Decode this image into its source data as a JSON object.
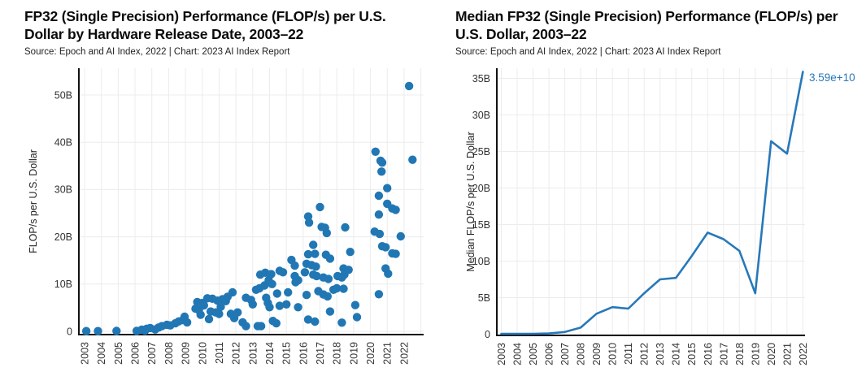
{
  "page": {
    "background": "#ffffff",
    "grid_color": "#ececec",
    "axis_color": "#111111",
    "tick_color": "#333333"
  },
  "chart_data": [
    {
      "type": "scatter",
      "title": "FP32 (Single Precision) Performance (FLOP/s) per U.S. Dollar by Hardware Release Date, 2003–22",
      "source": "Source: Epoch and AI Index, 2022 | Chart: 2023 AI Index Report",
      "ylabel": "FLOP/s per U.S. Dollar",
      "units": "billions of FLOP/s per U.S. dollar",
      "marker_color": "#2177b4",
      "xticks": [
        2003,
        2004,
        2005,
        2006,
        2007,
        2008,
        2009,
        2010,
        2011,
        2012,
        2013,
        2014,
        2015,
        2016,
        2017,
        2018,
        2019,
        2020,
        2021,
        2022
      ],
      "xtick_labels": [
        "2003",
        "2004",
        "2005",
        "2006",
        "2007",
        "2008",
        "2009",
        "2010",
        "2011",
        "2012",
        "2013",
        "2014",
        "2015",
        "2016",
        "2017",
        "2018",
        "2019",
        "2020",
        "2021",
        "2022"
      ],
      "ytick_values": [
        0,
        10,
        20,
        30,
        40,
        50
      ],
      "ytick_labels": [
        "0",
        "10B",
        "20B",
        "30B",
        "40B",
        "50B"
      ],
      "ylim": [
        0,
        55
      ],
      "xlim": [
        2002.6,
        2023.2
      ],
      "legend": "none",
      "grid": true,
      "points": [
        [
          2003.1,
          0.05
        ],
        [
          2003.8,
          0.05
        ],
        [
          2004.9,
          0.08
        ],
        [
          2006.1,
          0.1
        ],
        [
          2006.4,
          0.35
        ],
        [
          2006.6,
          0.15
        ],
        [
          2006.7,
          0.55
        ],
        [
          2006.9,
          0.7
        ],
        [
          2007.2,
          0.4
        ],
        [
          2007.4,
          0.8
        ],
        [
          2007.6,
          1.1
        ],
        [
          2007.9,
          1.4
        ],
        [
          2008.1,
          1.26
        ],
        [
          2008.4,
          1.7
        ],
        [
          2008.6,
          2.1
        ],
        [
          2008.85,
          2.4
        ],
        [
          2008.95,
          3.1
        ],
        [
          2009.1,
          1.9
        ],
        [
          2009.6,
          4.8
        ],
        [
          2009.7,
          6.2
        ],
        [
          2009.8,
          4.5
        ],
        [
          2009.9,
          3.5
        ],
        [
          2010.0,
          6.0
        ],
        [
          2010.1,
          5.5
        ],
        [
          2010.3,
          7.0
        ],
        [
          2010.4,
          2.6
        ],
        [
          2010.5,
          4.2
        ],
        [
          2010.6,
          6.9
        ],
        [
          2010.8,
          4.0
        ],
        [
          2010.9,
          6.5
        ],
        [
          2011.0,
          3.7
        ],
        [
          2011.1,
          5.2
        ],
        [
          2011.2,
          6.8
        ],
        [
          2011.4,
          6.4
        ],
        [
          2011.5,
          7.3
        ],
        [
          2011.7,
          3.7
        ],
        [
          2011.8,
          8.25
        ],
        [
          2011.9,
          2.8
        ],
        [
          2012.1,
          4.0
        ],
        [
          2012.4,
          1.9
        ],
        [
          2012.6,
          7.1
        ],
        [
          2012.6,
          1.1
        ],
        [
          2012.9,
          6.65
        ],
        [
          2013.0,
          5.7
        ],
        [
          2013.2,
          8.8
        ],
        [
          2013.3,
          1.1
        ],
        [
          2013.4,
          9.1
        ],
        [
          2013.45,
          12.0
        ],
        [
          2013.5,
          1.1
        ],
        [
          2013.7,
          9.7
        ],
        [
          2013.75,
          12.4
        ],
        [
          2013.8,
          7.1
        ],
        [
          2013.9,
          6.0
        ],
        [
          2013.95,
          10.8
        ],
        [
          2014.0,
          5.1
        ],
        [
          2014.1,
          12.1
        ],
        [
          2014.15,
          10.0
        ],
        [
          2014.2,
          2.2
        ],
        [
          2014.4,
          1.7
        ],
        [
          2014.45,
          8.0
        ],
        [
          2014.6,
          12.8
        ],
        [
          2014.6,
          5.4
        ],
        [
          2014.8,
          12.5
        ],
        [
          2015.0,
          5.7
        ],
        [
          2015.1,
          8.25
        ],
        [
          2015.3,
          15.1
        ],
        [
          2015.5,
          13.9
        ],
        [
          2015.5,
          11.7
        ],
        [
          2015.55,
          10.4
        ],
        [
          2015.7,
          10.8
        ],
        [
          2015.7,
          5.1
        ],
        [
          2016.1,
          12.5
        ],
        [
          2016.2,
          14.3
        ],
        [
          2016.2,
          7.7
        ],
        [
          2016.3,
          24.3
        ],
        [
          2016.35,
          23.0
        ],
        [
          2016.3,
          16.3
        ],
        [
          2016.3,
          2.5
        ],
        [
          2016.5,
          14.0
        ],
        [
          2016.6,
          18.3
        ],
        [
          2016.6,
          12.0
        ],
        [
          2016.7,
          16.4
        ],
        [
          2016.7,
          2.06
        ],
        [
          2016.75,
          13.7
        ],
        [
          2016.8,
          11.7
        ],
        [
          2016.9,
          8.5
        ],
        [
          2017.0,
          26.3
        ],
        [
          2017.1,
          22.1
        ],
        [
          2017.2,
          11.4
        ],
        [
          2017.2,
          7.8
        ],
        [
          2017.3,
          21.9
        ],
        [
          2017.35,
          16.2
        ],
        [
          2017.4,
          20.8
        ],
        [
          2017.45,
          7.4
        ],
        [
          2017.5,
          11.1
        ],
        [
          2017.6,
          15.4
        ],
        [
          2017.6,
          4.2
        ],
        [
          2017.8,
          8.8
        ],
        [
          2018.0,
          9.1
        ],
        [
          2018.05,
          11.7
        ],
        [
          2018.3,
          11.4
        ],
        [
          2018.3,
          1.84
        ],
        [
          2018.4,
          13.3
        ],
        [
          2018.45,
          12.0
        ],
        [
          2018.4,
          9.0
        ],
        [
          2018.5,
          22.0
        ],
        [
          2018.7,
          13.0
        ],
        [
          2018.8,
          16.8
        ],
        [
          2019.1,
          5.55
        ],
        [
          2019.2,
          3.0
        ],
        [
          2020.25,
          21.1
        ],
        [
          2020.3,
          38.0
        ],
        [
          2020.5,
          28.7
        ],
        [
          2020.5,
          24.7
        ],
        [
          2020.5,
          7.85
        ],
        [
          2020.55,
          20.6
        ],
        [
          2020.6,
          36.1
        ],
        [
          2020.66,
          33.8
        ],
        [
          2020.7,
          35.7
        ],
        [
          2020.7,
          18.0
        ],
        [
          2020.9,
          17.8
        ],
        [
          2020.9,
          13.3
        ],
        [
          2021.0,
          30.3
        ],
        [
          2021.0,
          27.0
        ],
        [
          2021.05,
          12.2
        ],
        [
          2021.3,
          26.0
        ],
        [
          2021.3,
          16.5
        ],
        [
          2021.5,
          25.7
        ],
        [
          2021.5,
          16.4
        ],
        [
          2021.8,
          20.1
        ],
        [
          2022.3,
          51.9
        ],
        [
          2022.5,
          36.3
        ]
      ]
    },
    {
      "type": "line",
      "title": "Median FP32 (Single Precision) Performance (FLOP/s) per U.S. Dollar, 2003–22",
      "source": "Source: Epoch and AI Index, 2022 | Chart: 2023 AI Index Report",
      "ylabel": "Median FLOP/s per U.S. Dollar",
      "units": "billions of FLOP/s per U.S. dollar",
      "line_color": "#2878b8",
      "x": [
        2003,
        2004,
        2005,
        2006,
        2007,
        2008,
        2009,
        2010,
        2011,
        2012,
        2013,
        2014,
        2015,
        2016,
        2017,
        2018,
        2019,
        2020,
        2021,
        2022
      ],
      "xtick_labels": [
        "2003",
        "2004",
        "2005",
        "2006",
        "2007",
        "2008",
        "2009",
        "2010",
        "2011",
        "2012",
        "2013",
        "2014",
        "2015",
        "2016",
        "2017",
        "2018",
        "2019",
        "2020",
        "2021",
        "2022"
      ],
      "values": [
        0.05,
        0.05,
        0.06,
        0.1,
        0.3,
        0.9,
        2.8,
        3.7,
        3.5,
        5.6,
        7.5,
        7.7,
        10.7,
        13.9,
        13.0,
        11.4,
        5.6,
        26.4,
        24.7,
        35.9
      ],
      "ytick_values": [
        0,
        5,
        10,
        15,
        20,
        25,
        30,
        35
      ],
      "ytick_labels": [
        "0",
        "5B",
        "10B",
        "15B",
        "20B",
        "25B",
        "30B",
        "35B"
      ],
      "ylim": [
        0,
        36.3
      ],
      "xlim": [
        2002.7,
        2022.2
      ],
      "legend": "none",
      "grid": true,
      "annotation": {
        "text": "3.59e+10",
        "color": "#2878b8"
      }
    }
  ]
}
